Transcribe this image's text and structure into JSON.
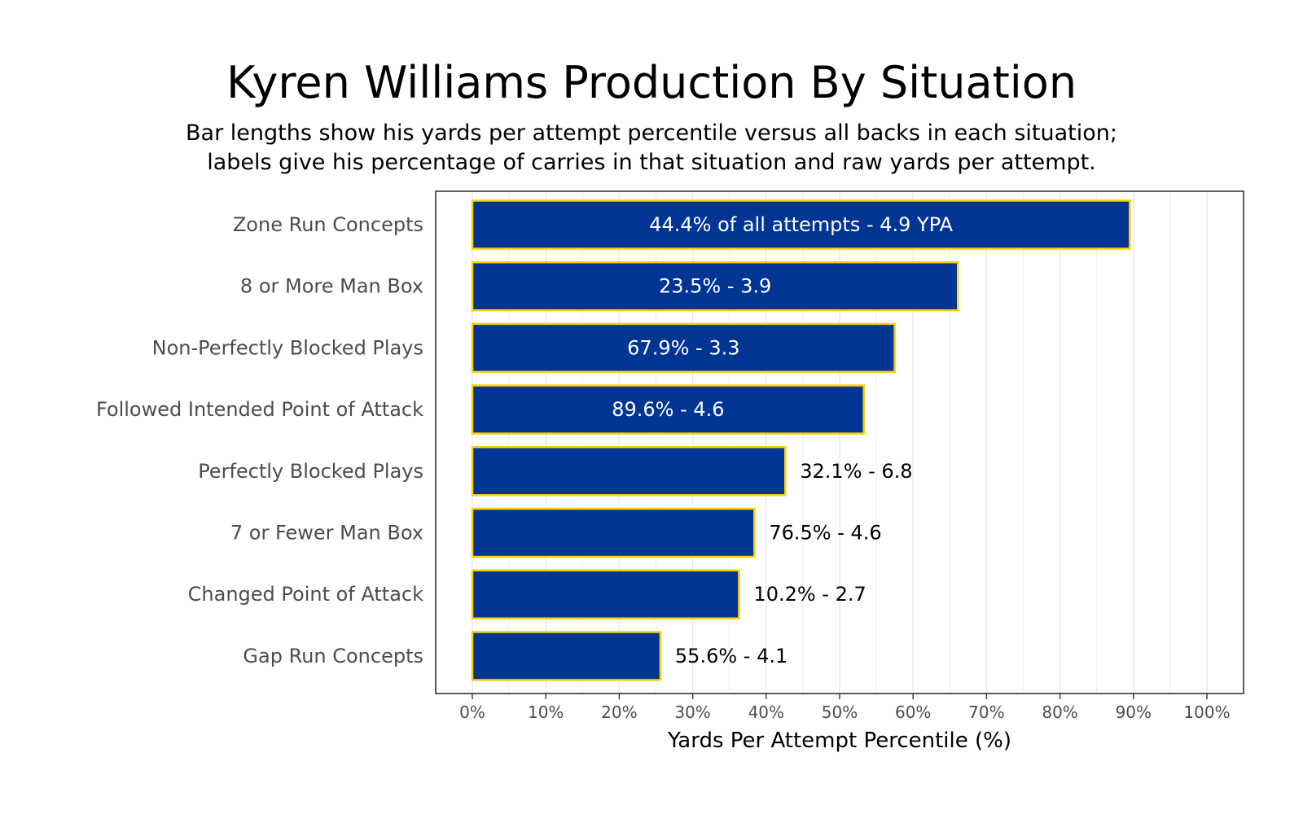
{
  "chart_data": {
    "type": "bar",
    "orientation": "horizontal",
    "title": "Kyren Williams Production By Situation",
    "subtitle_lines": [
      "Bar lengths show his yards per attempt percentile versus all backs in each situation;",
      "labels give his percentage of carries in that situation and raw yards per attempt."
    ],
    "xlabel": "Yards Per Attempt Percentile (%)",
    "ylabel": "",
    "xlim": [
      0,
      100
    ],
    "x_ticks": [
      "0%",
      "10%",
      "20%",
      "30%",
      "40%",
      "50%",
      "60%",
      "70%",
      "80%",
      "90%",
      "100%"
    ],
    "grid": true,
    "categories": [
      "Zone Run Concepts",
      "8 or More Man Box",
      "Non-Perfectly Blocked Plays",
      "Followed Intended Point of Attack",
      "Perfectly Blocked Plays",
      "7 or Fewer Man Box",
      "Changed Point of Attack",
      "Gap Run Concepts"
    ],
    "values": [
      89.5,
      66.1,
      57.5,
      53.3,
      42.6,
      38.4,
      36.3,
      25.6
    ],
    "labels": [
      "44.4% of all attempts - 4.9 YPA",
      "23.5% - 3.9",
      "67.9% - 3.3",
      "89.6% - 4.6",
      "32.1% - 6.8",
      "76.5% - 4.6",
      "10.2% - 2.7",
      "55.6% - 4.1"
    ],
    "label_inside": [
      true,
      true,
      true,
      true,
      false,
      false,
      false,
      false
    ],
    "colors": {
      "bar_fill": "#003594",
      "bar_outline": "#FFD100",
      "label_inside": "#ffffff",
      "label_outside": "#000000",
      "grid": "#ebebeb",
      "panel_border": "#333333"
    }
  }
}
